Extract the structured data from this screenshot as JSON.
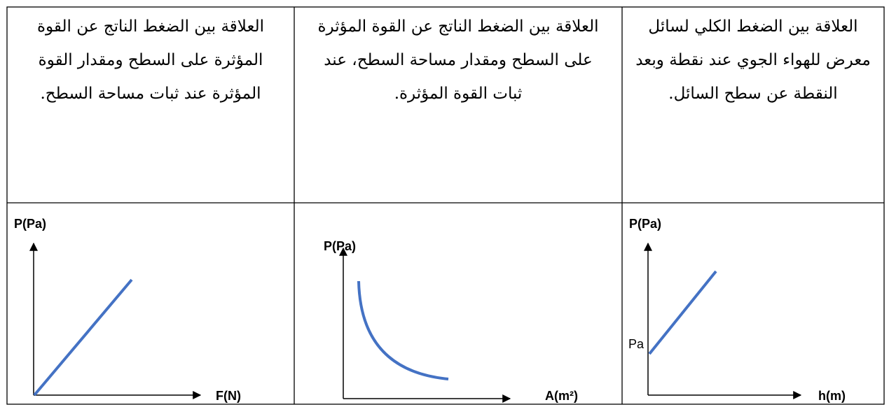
{
  "table": {
    "columns": [
      {
        "description": "العلاقة بين الضغط الكلي لسائل معرض للهواء الجوي عند نقطة وبعد النقطة عن سطح السائل.",
        "y_label": "P(Pa)",
        "x_label": "h(m)",
        "intercept_label": "Pa"
      },
      {
        "description": "العلاقة بين الضغط الناتج عن القوة المؤثرة على السطح ومقدار مساحة السطح، عند ثبات القوة المؤثرة.",
        "y_label": "P(Pa)",
        "x_label": "A(m²)"
      },
      {
        "description": "العلاقة بين الضغط الناتج عن القوة المؤثرة على السطح ومقدار القوة المؤثرة عند ثبات مساحة السطح.",
        "y_label": "P(Pa)",
        "x_label": "F(N)"
      }
    ]
  }
}
